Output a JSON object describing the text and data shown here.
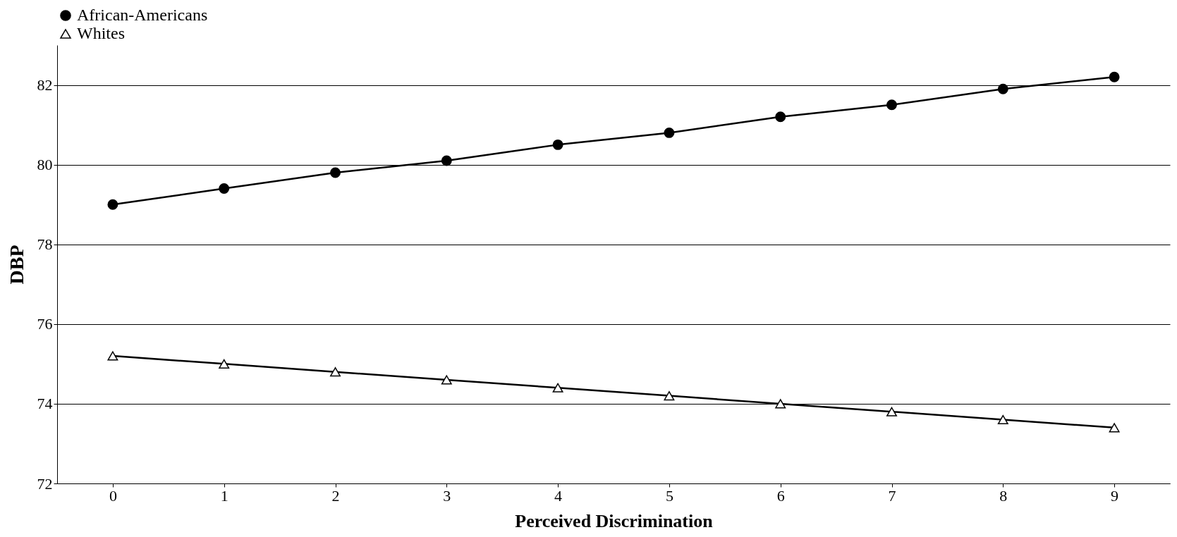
{
  "chart_data": {
    "type": "line",
    "xlabel": "Perceived Discrimination",
    "ylabel": "DBP",
    "categories": [
      "0",
      "1",
      "2",
      "3",
      "4",
      "5",
      "6",
      "7",
      "8",
      "9"
    ],
    "series": [
      {
        "name": "African-Americans",
        "color": "#000000",
        "marker": "circle",
        "values": [
          79.0,
          79.4,
          79.8,
          80.1,
          80.5,
          80.8,
          81.2,
          81.5,
          81.9,
          82.2
        ]
      },
      {
        "name": "Whites",
        "color": "#000000",
        "marker": "triangle",
        "values": [
          75.2,
          75.0,
          74.8,
          74.6,
          74.4,
          74.2,
          74.0,
          73.8,
          73.6,
          73.4
        ]
      }
    ],
    "ylim": [
      72,
      83
    ],
    "yticks": [
      72,
      74,
      76,
      78,
      80,
      82
    ],
    "grid": "y",
    "legend": "top",
    "line_style": "solid"
  }
}
